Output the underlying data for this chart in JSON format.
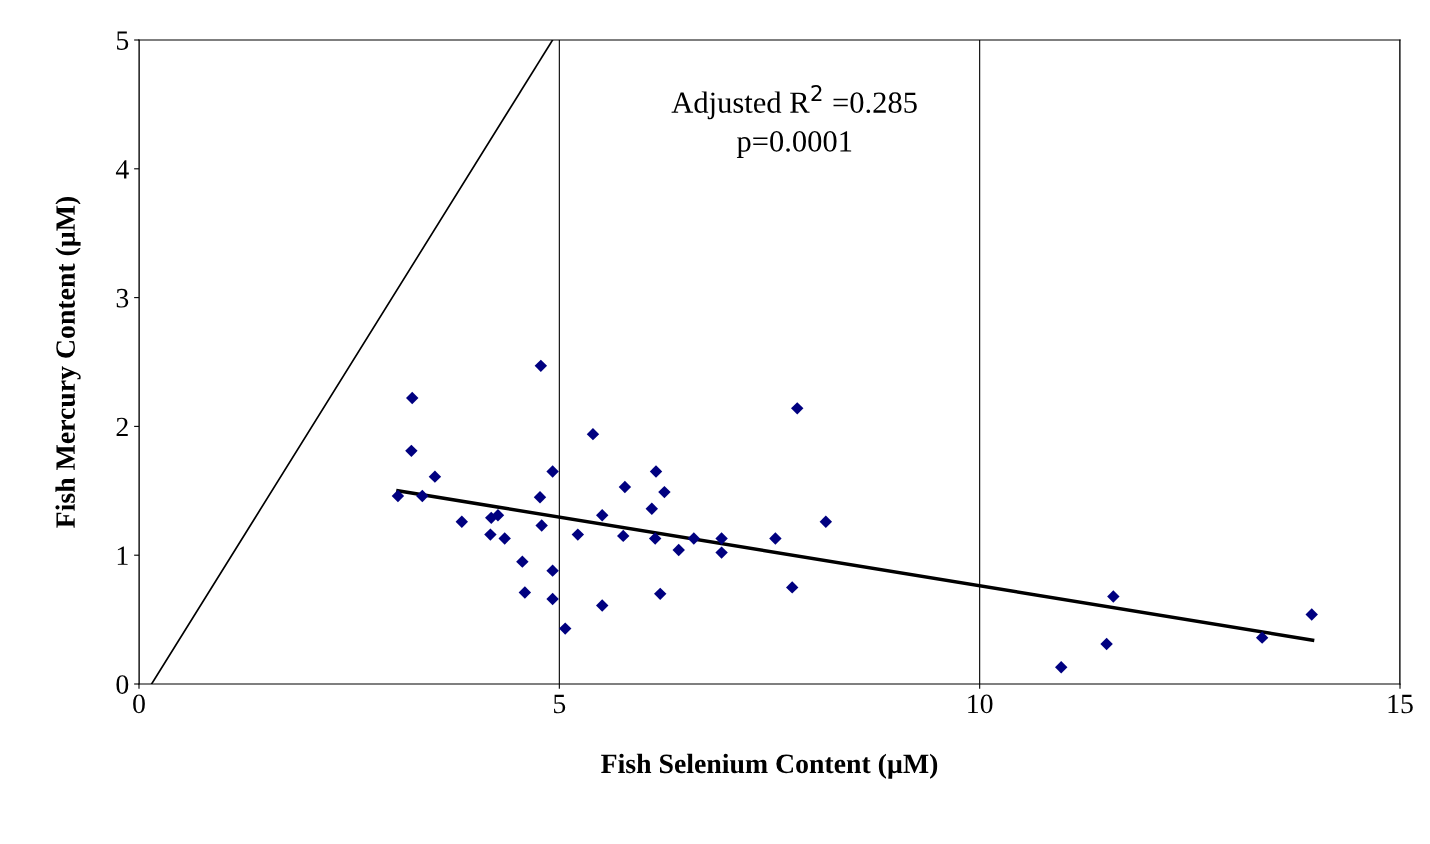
{
  "chart_data": {
    "type": "scatter",
    "xlabel": "Fish Selenium Content (µM)",
    "ylabel": "Fish Mercury Content (µM)",
    "xlim": [
      0,
      15
    ],
    "xticks": [
      0,
      5,
      10,
      15
    ],
    "ylim": [
      0,
      5
    ],
    "yticks": [
      0,
      1,
      2,
      3,
      4,
      5
    ],
    "grid": "x",
    "annotations": [
      "Adjusted R$^{2}$ =0.285\np=0.0001"
    ],
    "series": [
      {
        "marker": "diamond",
        "color": "#000080",
        "x": [
          3.08,
          3.25,
          3.24,
          3.37,
          3.52,
          3.84,
          4.18,
          4.19,
          4.27,
          4.35,
          4.56,
          4.59,
          4.78,
          4.77,
          4.79,
          4.92,
          4.92,
          4.92,
          5.07,
          5.22,
          5.4,
          5.51,
          5.51,
          5.76,
          5.78,
          6.1,
          6.15,
          6.14,
          6.25,
          6.2,
          6.42,
          6.6,
          6.93,
          6.93,
          7.57,
          7.77,
          7.83,
          8.17,
          10.97,
          11.51,
          11.59,
          13.36,
          13.95
        ],
        "values": [
          1.46,
          2.22,
          1.81,
          1.46,
          1.61,
          1.26,
          1.16,
          1.29,
          1.31,
          1.13,
          0.95,
          0.71,
          2.47,
          1.45,
          1.23,
          1.65,
          0.88,
          0.66,
          0.43,
          1.16,
          1.94,
          1.31,
          0.61,
          1.15,
          1.53,
          1.36,
          1.65,
          1.13,
          1.49,
          0.7,
          1.04,
          1.13,
          1.13,
          1.02,
          1.13,
          0.75,
          2.14,
          1.26,
          0.13,
          0.31,
          0.68,
          0.36,
          0.54
        ]
      },
      {
        "type": "line",
        "color": "#000000",
        "x": [
          3.08,
          13.96
        ],
        "values": [
          1.5,
          0.34
        ]
      },
      {
        "type": "line",
        "color": "#000000",
        "x": [
          0.15,
          4.92
        ],
        "values": [
          0,
          5
        ]
      }
    ]
  }
}
